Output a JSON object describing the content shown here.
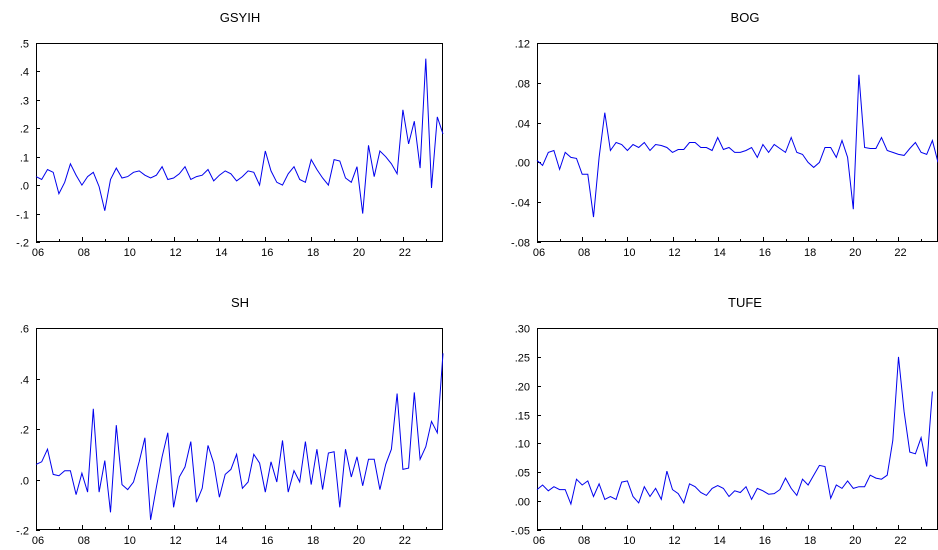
{
  "chart_data": [
    {
      "type": "line",
      "title": "GSYIH",
      "xlim": [
        2006,
        2023.75
      ],
      "ylim": [
        -0.2,
        0.5
      ],
      "yticks": [
        -0.2,
        -0.1,
        0.0,
        0.1,
        0.2,
        0.3,
        0.4,
        0.5
      ],
      "ytick_labels": [
        "-.2",
        "-.1",
        ".0",
        ".1",
        ".2",
        ".3",
        ".4",
        ".5"
      ],
      "xtick_labels": [
        "06",
        "08",
        "10",
        "12",
        "14",
        "16",
        "18",
        "20",
        "22"
      ],
      "xtick_years": [
        2006,
        2008,
        2010,
        2012,
        2014,
        2016,
        2018,
        2020,
        2022
      ],
      "series": [
        {
          "color": "#0000ee",
          "start": 2006,
          "freq": 4,
          "values": [
            0.03,
            0.02,
            0.055,
            0.045,
            -0.03,
            0.01,
            0.075,
            0.035,
            0.0,
            0.03,
            0.045,
            -0.005,
            -0.09,
            0.02,
            0.06,
            0.025,
            0.03,
            0.045,
            0.05,
            0.035,
            0.025,
            0.035,
            0.065,
            0.02,
            0.025,
            0.04,
            0.065,
            0.02,
            0.03,
            0.035,
            0.055,
            0.015,
            0.035,
            0.05,
            0.04,
            0.015,
            0.03,
            0.05,
            0.045,
            0.0,
            0.12,
            0.05,
            0.01,
            0.0,
            0.04,
            0.065,
            0.02,
            0.01,
            0.09,
            0.055,
            0.025,
            0.0,
            0.09,
            0.085,
            0.025,
            0.01,
            0.065,
            -0.1,
            0.14,
            0.03,
            0.12,
            0.1,
            0.075,
            0.04,
            0.265,
            0.145,
            0.225,
            0.06,
            0.445,
            -0.01,
            0.24,
            0.18
          ]
        }
      ]
    },
    {
      "type": "line",
      "title": "BOG",
      "xlim": [
        2006,
        2023.75
      ],
      "ylim": [
        -0.08,
        0.12
      ],
      "yticks": [
        -0.08,
        -0.04,
        0.0,
        0.04,
        0.08,
        0.12
      ],
      "ytick_labels": [
        "-.08",
        "-.04",
        ".00",
        ".04",
        ".08",
        ".12"
      ],
      "xtick_labels": [
        "06",
        "08",
        "10",
        "12",
        "14",
        "16",
        "18",
        "20",
        "22"
      ],
      "xtick_years": [
        2006,
        2008,
        2010,
        2012,
        2014,
        2016,
        2018,
        2020,
        2022
      ],
      "series": [
        {
          "color": "#0000ee",
          "start": 2006,
          "freq": 4,
          "values": [
            0.002,
            -0.003,
            0.01,
            0.012,
            -0.007,
            0.01,
            0.005,
            0.004,
            -0.012,
            -0.012,
            -0.055,
            0.005,
            0.05,
            0.012,
            0.02,
            0.018,
            0.012,
            0.018,
            0.015,
            0.02,
            0.012,
            0.018,
            0.017,
            0.015,
            0.01,
            0.013,
            0.013,
            0.02,
            0.02,
            0.015,
            0.015,
            0.012,
            0.025,
            0.013,
            0.015,
            0.01,
            0.01,
            0.012,
            0.015,
            0.005,
            0.018,
            0.01,
            0.018,
            0.014,
            0.01,
            0.025,
            0.01,
            0.008,
            0.0,
            -0.005,
            0.0,
            0.015,
            0.015,
            0.005,
            0.022,
            0.005,
            -0.047,
            0.088,
            0.015,
            0.014,
            0.014,
            0.025,
            0.012,
            0.01,
            0.008,
            0.007,
            0.014,
            0.02,
            0.01,
            0.008,
            0.022,
            0.0
          ]
        }
      ]
    },
    {
      "type": "line",
      "title": "SH",
      "xlim": [
        2006,
        2023.75
      ],
      "ylim": [
        -0.2,
        0.6
      ],
      "yticks": [
        -0.2,
        0.0,
        0.2,
        0.4,
        0.6
      ],
      "ytick_labels": [
        "-.2",
        ".0",
        ".2",
        ".4",
        ".6"
      ],
      "xtick_labels": [
        "06",
        "08",
        "10",
        "12",
        "14",
        "16",
        "18",
        "20",
        "22"
      ],
      "xtick_years": [
        2006,
        2008,
        2010,
        2012,
        2014,
        2016,
        2018,
        2020,
        2022
      ],
      "series": [
        {
          "color": "#0000ee",
          "start": 2006,
          "freq": 4,
          "values": [
            0.06,
            0.07,
            0.12,
            0.02,
            0.015,
            0.035,
            0.035,
            -0.06,
            0.025,
            -0.05,
            0.28,
            -0.05,
            0.075,
            -0.13,
            0.215,
            -0.02,
            -0.04,
            -0.01,
            0.07,
            0.165,
            -0.16,
            -0.03,
            0.09,
            0.185,
            -0.11,
            0.01,
            0.05,
            0.15,
            -0.09,
            -0.035,
            0.135,
            0.065,
            -0.07,
            0.02,
            0.04,
            0.1,
            -0.035,
            -0.01,
            0.1,
            0.065,
            -0.05,
            0.07,
            -0.01,
            0.155,
            -0.05,
            0.035,
            -0.01,
            0.15,
            -0.02,
            0.12,
            -0.04,
            0.105,
            0.11,
            -0.11,
            0.12,
            0.01,
            0.09,
            -0.025,
            0.08,
            0.08,
            -0.04,
            0.06,
            0.12,
            0.34,
            0.04,
            0.045,
            0.345,
            0.08,
            0.13,
            0.23,
            0.185,
            0.5
          ]
        }
      ]
    },
    {
      "type": "line",
      "title": "TUFE",
      "xlim": [
        2006,
        2023.75
      ],
      "ylim": [
        -0.05,
        0.3
      ],
      "yticks": [
        -0.05,
        0.0,
        0.05,
        0.1,
        0.15,
        0.2,
        0.25,
        0.3
      ],
      "ytick_labels": [
        "-.05",
        ".00",
        ".05",
        ".10",
        ".15",
        ".20",
        ".25",
        ".30"
      ],
      "xtick_labels": [
        "06",
        "08",
        "10",
        "12",
        "14",
        "16",
        "18",
        "20",
        "22"
      ],
      "xtick_years": [
        2006,
        2008,
        2010,
        2012,
        2014,
        2016,
        2018,
        2020,
        2022
      ],
      "series": [
        {
          "color": "#0000ee",
          "start": 2006,
          "freq": 4,
          "values": [
            0.02,
            0.028,
            0.018,
            0.025,
            0.02,
            0.02,
            -0.005,
            0.038,
            0.028,
            0.035,
            0.008,
            0.03,
            0.003,
            0.008,
            0.003,
            0.033,
            0.035,
            0.008,
            -0.003,
            0.025,
            0.008,
            0.022,
            0.003,
            0.052,
            0.02,
            0.013,
            -0.003,
            0.03,
            0.025,
            0.015,
            0.01,
            0.022,
            0.027,
            0.022,
            0.008,
            0.018,
            0.015,
            0.025,
            0.003,
            0.022,
            0.018,
            0.012,
            0.013,
            0.02,
            0.04,
            0.022,
            0.01,
            0.038,
            0.028,
            0.045,
            0.062,
            0.06,
            0.005,
            0.028,
            0.022,
            0.035,
            0.022,
            0.025,
            0.025,
            0.045,
            0.04,
            0.038,
            0.045,
            0.105,
            0.25,
            0.155,
            0.085,
            0.082,
            0.11,
            0.06,
            0.19
          ]
        }
      ]
    }
  ]
}
